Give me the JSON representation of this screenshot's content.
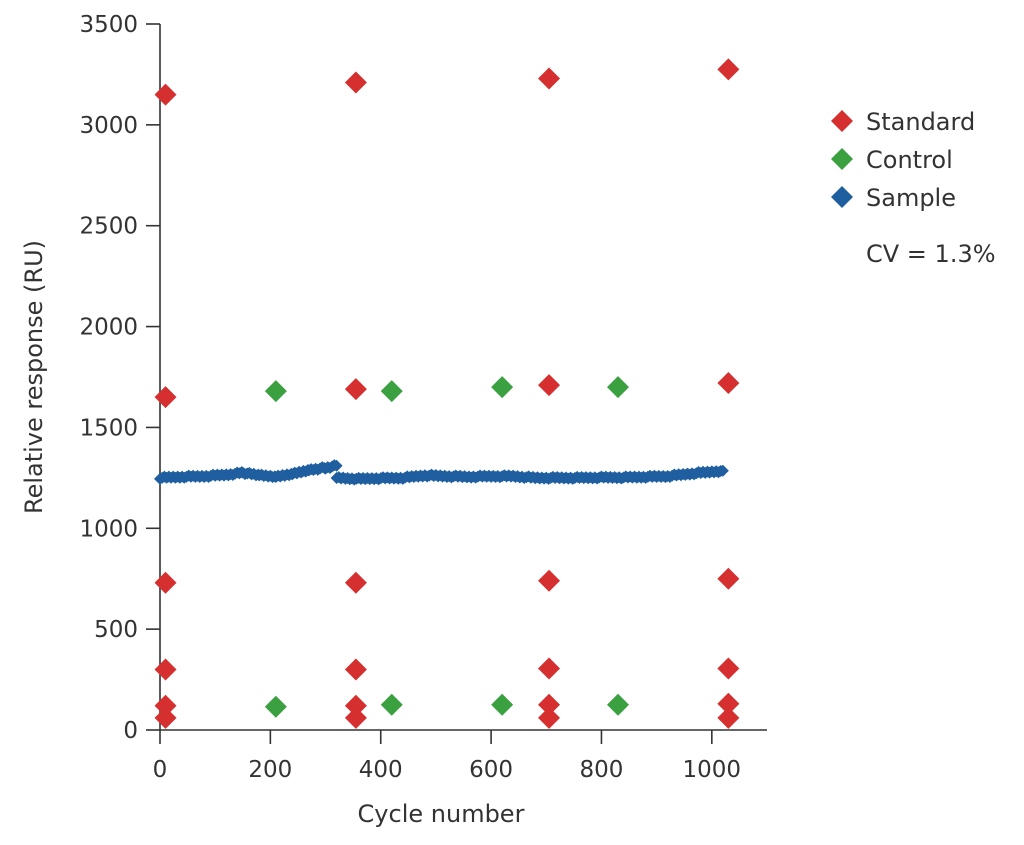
{
  "chart_data": {
    "type": "scatter",
    "xlabel": "Cycle number",
    "ylabel": "Relative response (RU)",
    "xlim": [
      0,
      1100
    ],
    "ylim": [
      0,
      3500
    ],
    "xticks": [
      0,
      200,
      400,
      600,
      800,
      1000
    ],
    "yticks": [
      0,
      500,
      1000,
      1500,
      2000,
      2500,
      3000,
      3500
    ],
    "grid": false,
    "legend_position": "right",
    "annotation": "CV = 1.3%",
    "series": [
      {
        "name": "Standard",
        "color": "#d62f2f",
        "marker": "diamond",
        "x": [
          10,
          10,
          10,
          10,
          10,
          10,
          355,
          355,
          355,
          355,
          355,
          355,
          705,
          705,
          705,
          705,
          705,
          705,
          1030,
          1030,
          1030,
          1030,
          1030,
          1030
        ],
        "y": [
          3150,
          1650,
          730,
          300,
          120,
          60,
          3210,
          1690,
          730,
          300,
          120,
          60,
          3230,
          1710,
          740,
          305,
          125,
          60,
          3275,
          1720,
          750,
          305,
          130,
          60
        ]
      },
      {
        "name": "Control",
        "color": "#3aa040",
        "marker": "diamond",
        "x": [
          210,
          420,
          620,
          830,
          210,
          420,
          620,
          830
        ],
        "y": [
          1680,
          1680,
          1700,
          1700,
          115,
          125,
          125,
          125
        ]
      },
      {
        "name": "Sample",
        "color": "#1f5fa0",
        "marker": "diamond",
        "x_range": [
          0,
          1020
        ],
        "segments": [
          {
            "x": [
              0,
              40,
              80,
              120,
              150,
              180,
              210,
              240,
              270,
              300,
              320
            ],
            "y": [
              1250,
              1255,
              1258,
              1265,
              1275,
              1262,
              1255,
              1270,
              1290,
              1300,
              1310
            ]
          },
          {
            "x": [
              320,
              360,
              400,
              440,
              480,
              520,
              560,
              600,
              640,
              680,
              720,
              760,
              800,
              840,
              880,
              920,
              960,
              1000,
              1020
            ],
            "y": [
              1250,
              1245,
              1248,
              1250,
              1262,
              1258,
              1255,
              1258,
              1258,
              1250,
              1250,
              1250,
              1252,
              1252,
              1255,
              1258,
              1270,
              1280,
              1285
            ]
          }
        ]
      }
    ]
  }
}
